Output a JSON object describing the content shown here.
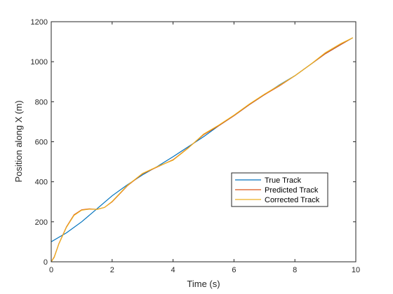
{
  "chart_data": {
    "type": "line",
    "xlabel": "Time (s)",
    "ylabel": "Position along X (m)",
    "xlim": [
      0,
      10
    ],
    "ylim": [
      0,
      1200
    ],
    "xticks": [
      "0",
      "2",
      "4",
      "6",
      "8",
      "10"
    ],
    "yticks": [
      "0",
      "200",
      "400",
      "600",
      "800",
      "1000",
      "1200"
    ],
    "grid": false,
    "legend_position": "lower-right",
    "series": [
      {
        "name": "True Track",
        "color": "#0072BD",
        "x": [
          0,
          0.5,
          1,
          1.5,
          2,
          2.5,
          3,
          3.5,
          4,
          4.5,
          5,
          5.5,
          6,
          6.5,
          7,
          7.5,
          8,
          8.5,
          9,
          9.5,
          9.9
        ],
        "y": [
          100,
          145,
          200,
          265,
          330,
          385,
          435,
          478,
          525,
          575,
          625,
          680,
          730,
          785,
          835,
          885,
          930,
          985,
          1040,
          1085,
          1120
        ]
      },
      {
        "name": "Predicted Track",
        "color": "#D95319",
        "x": [
          0,
          0.1,
          0.25,
          0.5,
          0.75,
          1,
          1.25,
          1.5,
          1.75,
          2,
          2.25,
          2.5,
          3,
          3.5,
          4,
          4.5,
          5,
          5.5,
          6,
          6.5,
          7,
          7.5,
          8,
          8.5,
          9,
          9.5,
          9.9
        ],
        "y": [
          0,
          25,
          90,
          175,
          235,
          260,
          265,
          262,
          272,
          300,
          340,
          380,
          440,
          475,
          510,
          570,
          635,
          680,
          730,
          785,
          835,
          880,
          930,
          985,
          1040,
          1085,
          1120
        ]
      },
      {
        "name": "Corrected Track",
        "color": "#EDB120",
        "x": [
          0,
          0.1,
          0.25,
          0.5,
          0.75,
          1,
          1.25,
          1.5,
          1.75,
          2,
          2.25,
          2.5,
          3,
          3.5,
          4,
          4.5,
          5,
          5.5,
          6,
          6.5,
          7,
          7.5,
          8,
          8.5,
          9,
          9.5,
          9.9
        ],
        "y": [
          0,
          22,
          88,
          172,
          232,
          258,
          263,
          262,
          272,
          302,
          342,
          382,
          442,
          477,
          508,
          568,
          638,
          683,
          733,
          788,
          838,
          883,
          930,
          985,
          1045,
          1090,
          1120
        ]
      }
    ]
  }
}
